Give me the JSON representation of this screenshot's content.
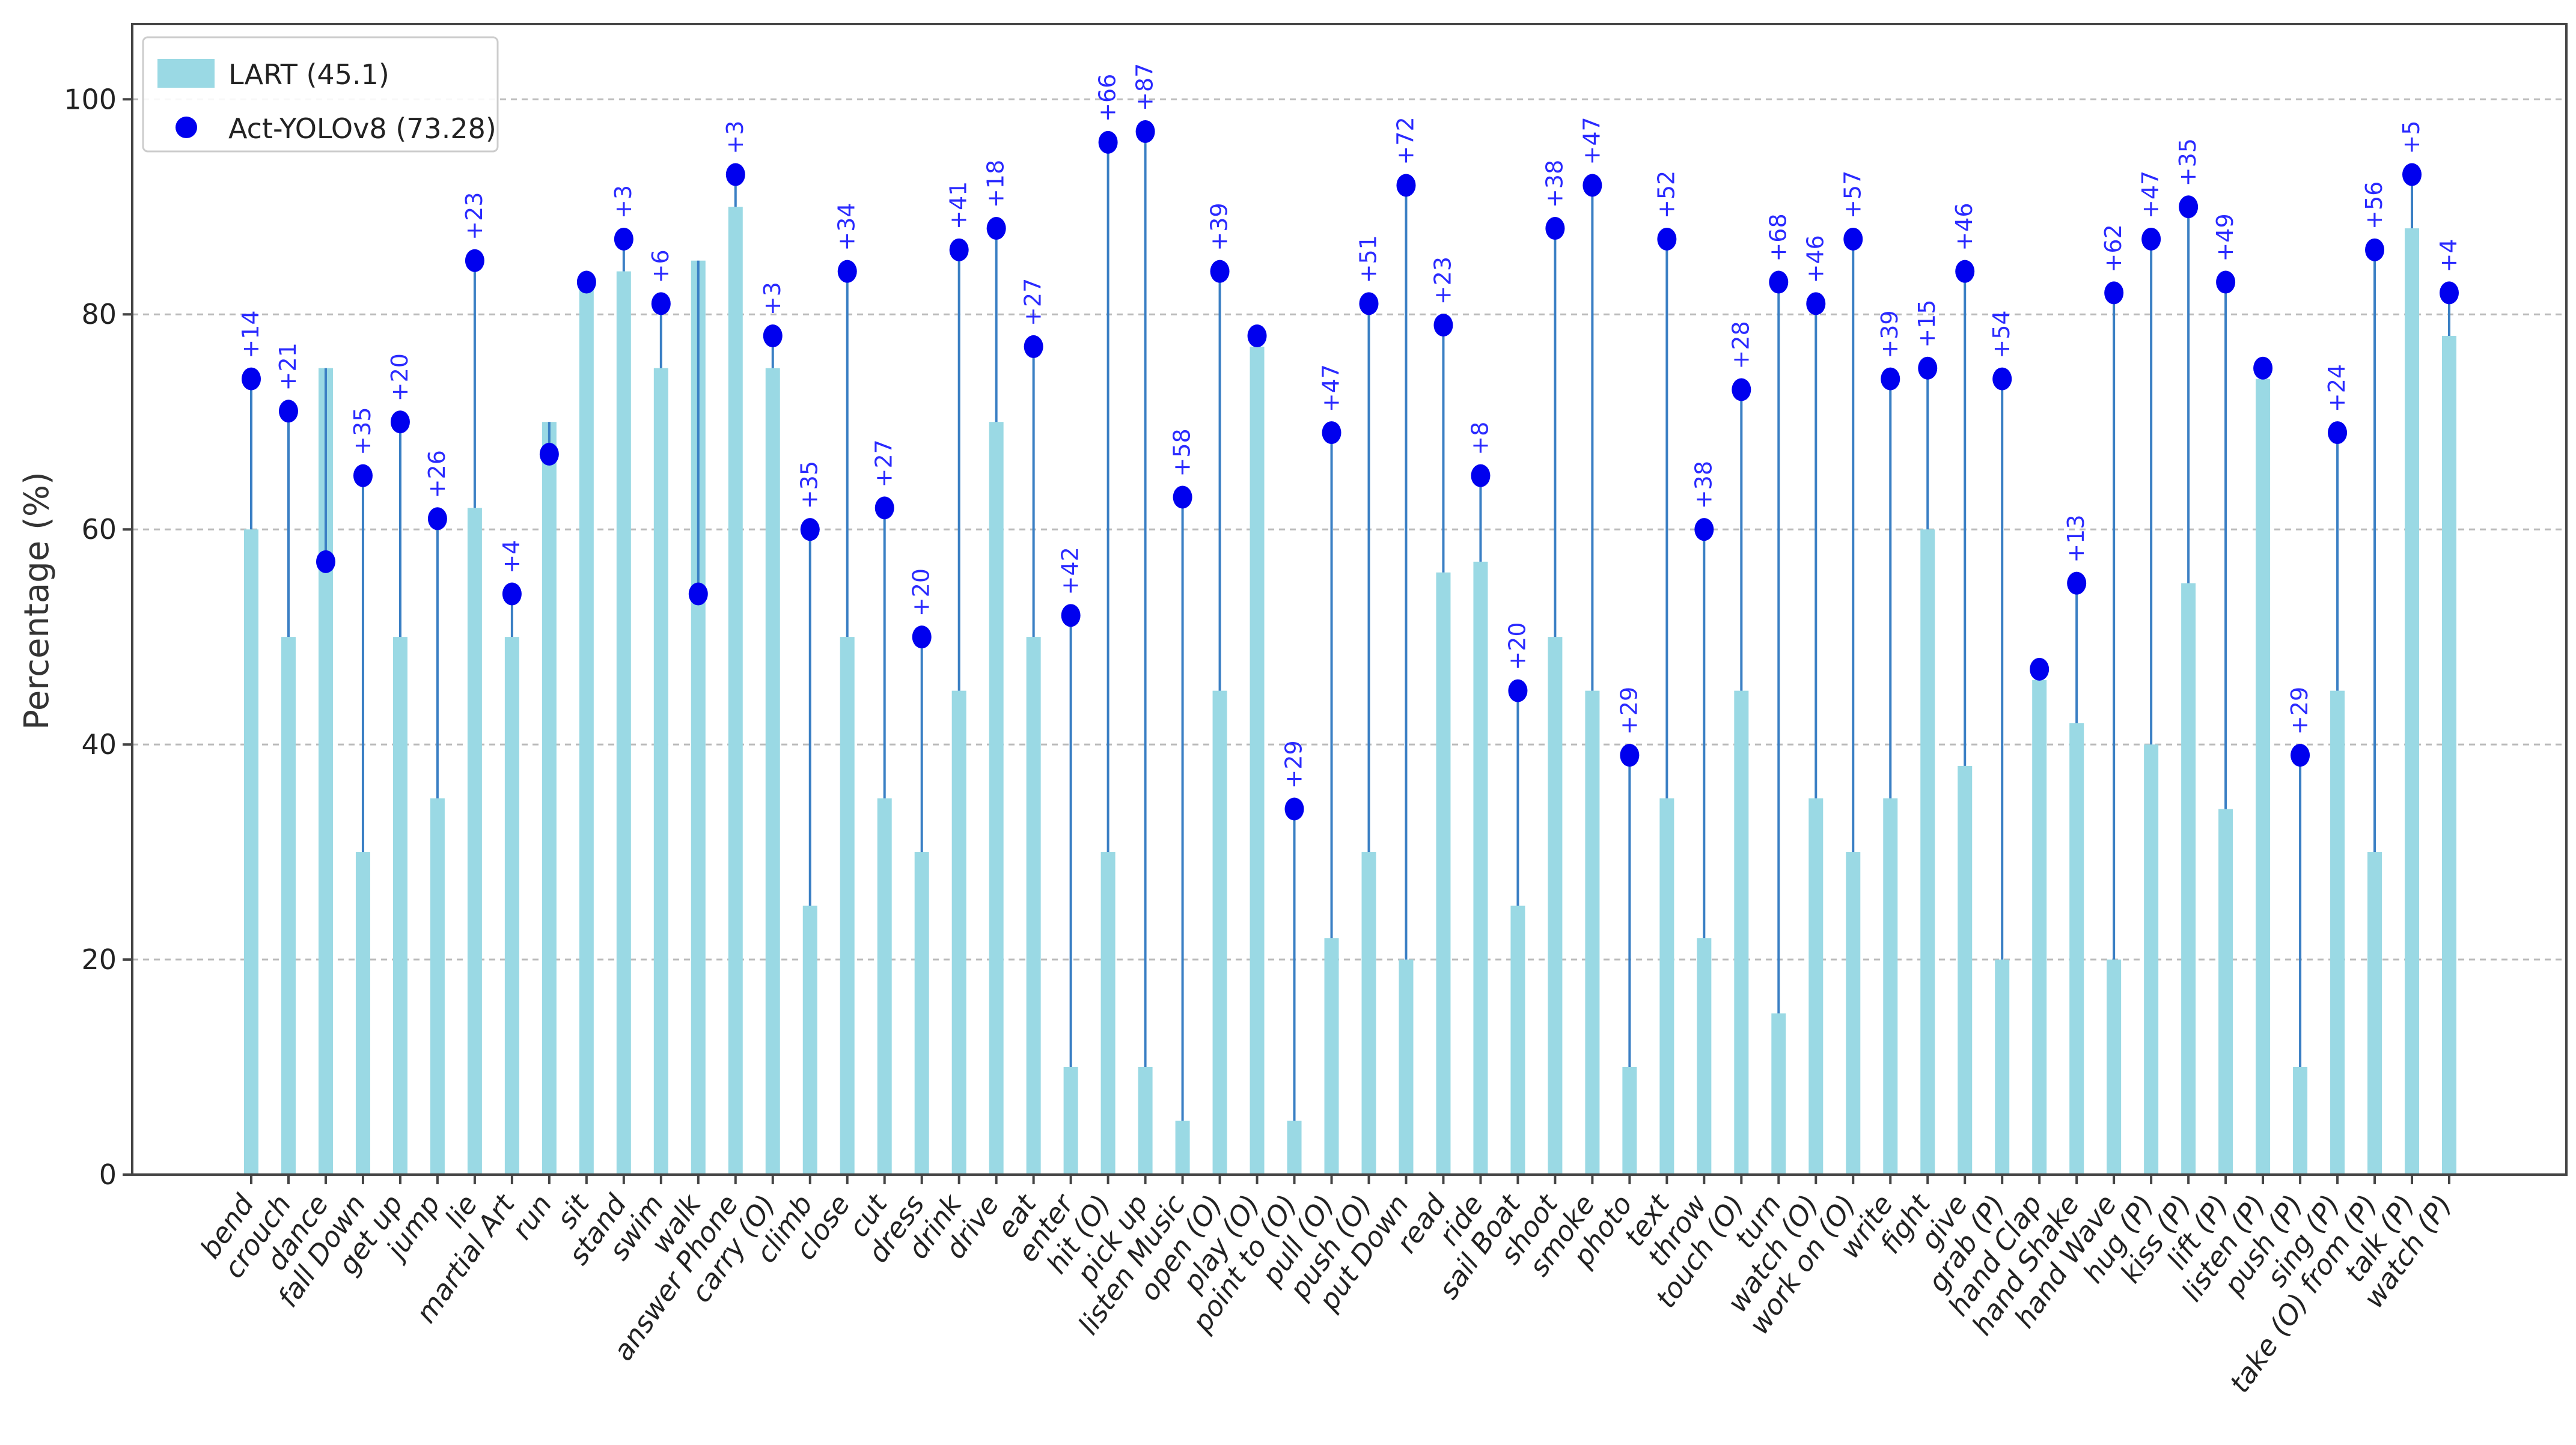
{
  "colors": {
    "bar": "#9ad9e4",
    "stem": "#3a7fc4",
    "dot": "#0000ee",
    "delta_text": "#2a2aff",
    "grid": "#bbbbbb",
    "axes": "#444444"
  },
  "chart_data": {
    "type": "bar",
    "title": "",
    "xlabel": "",
    "ylabel": "Percentage (%)",
    "ylim": [
      0,
      107
    ],
    "yticks": [
      0,
      20,
      40,
      60,
      80,
      100
    ],
    "grid": "horizontal dashed",
    "legend_position": "top-left",
    "categories": [
      "bend",
      "crouch",
      "dance",
      "fall Down",
      "get up",
      "jump",
      "lie",
      "martial Art",
      "run",
      "sit",
      "stand",
      "swim",
      "walk",
      "answer Phone",
      "carry (O)",
      "climb",
      "close",
      "cut",
      "dress",
      "drink",
      "drive",
      "eat",
      "enter",
      "hit (O)",
      "pick up",
      "listen Music",
      "open (O)",
      "play (O)",
      "point to (O)",
      "pull (O)",
      "push (O)",
      "put Down",
      "read",
      "ride",
      "sail Boat",
      "shoot",
      "smoke",
      "photo",
      "text",
      "throw",
      "touch (O)",
      "turn",
      "watch (O)",
      "work on (O)",
      "write",
      "fight",
      "give",
      "grab (P)",
      "hand Clap",
      "hand Shake",
      "hand Wave",
      "hug (P)",
      "kiss (P)",
      "lift (P)",
      "listen (P)",
      "push (P)",
      "sing (P)",
      "take (O) from (P)",
      "talk (P)",
      "watch (P)"
    ],
    "series": [
      {
        "name": "LART (45.1)",
        "kind": "bar",
        "values": [
          60,
          50,
          75,
          30,
          50,
          35,
          62,
          50,
          70,
          83,
          84,
          75,
          85,
          90,
          75,
          25,
          50,
          35,
          30,
          45,
          70,
          50,
          10,
          30,
          10,
          5,
          45,
          77,
          5,
          22,
          30,
          20,
          56,
          57,
          25,
          50,
          45,
          10,
          35,
          22,
          45,
          15,
          35,
          30,
          35,
          60,
          38,
          20,
          46,
          42,
          20,
          40,
          55,
          34,
          74,
          10,
          45,
          30,
          88,
          78
        ]
      },
      {
        "name": "Act-YOLOv8 (73.28)",
        "kind": "dot",
        "values": [
          74,
          71,
          57,
          65,
          70,
          61,
          85,
          54,
          67,
          83,
          87,
          81,
          54,
          93,
          78,
          60,
          84,
          62,
          50,
          86,
          88,
          77,
          52,
          96,
          97,
          63,
          84,
          78,
          34,
          69,
          81,
          92,
          79,
          65,
          45,
          88,
          92,
          39,
          87,
          60,
          73,
          83,
          81,
          87,
          74,
          75,
          84,
          74,
          47,
          55,
          82,
          87,
          90,
          83,
          75,
          39,
          69,
          86,
          93,
          82
        ]
      }
    ],
    "delta_labels": [
      "+14",
      "+21",
      "",
      "+35",
      "+20",
      "+26",
      "+23",
      "+4",
      "",
      "",
      "+3",
      "+6",
      "",
      "+3",
      "+3",
      "+35",
      "+34",
      "+27",
      "+20",
      "+41",
      "+18",
      "+27",
      "+42",
      "+66",
      "+87",
      "+58",
      "+39",
      "",
      "+29",
      "+47",
      "+51",
      "+72",
      "+23",
      "+8",
      "+20",
      "+38",
      "+47",
      "+29",
      "+52",
      "+38",
      "+28",
      "+68",
      "+46",
      "+57",
      "+39",
      "+15",
      "+46",
      "+54",
      "",
      "+13",
      "+62",
      "+47",
      "+35",
      "+49",
      "",
      "+29",
      "+24",
      "+56",
      "+5",
      "+4"
    ]
  }
}
